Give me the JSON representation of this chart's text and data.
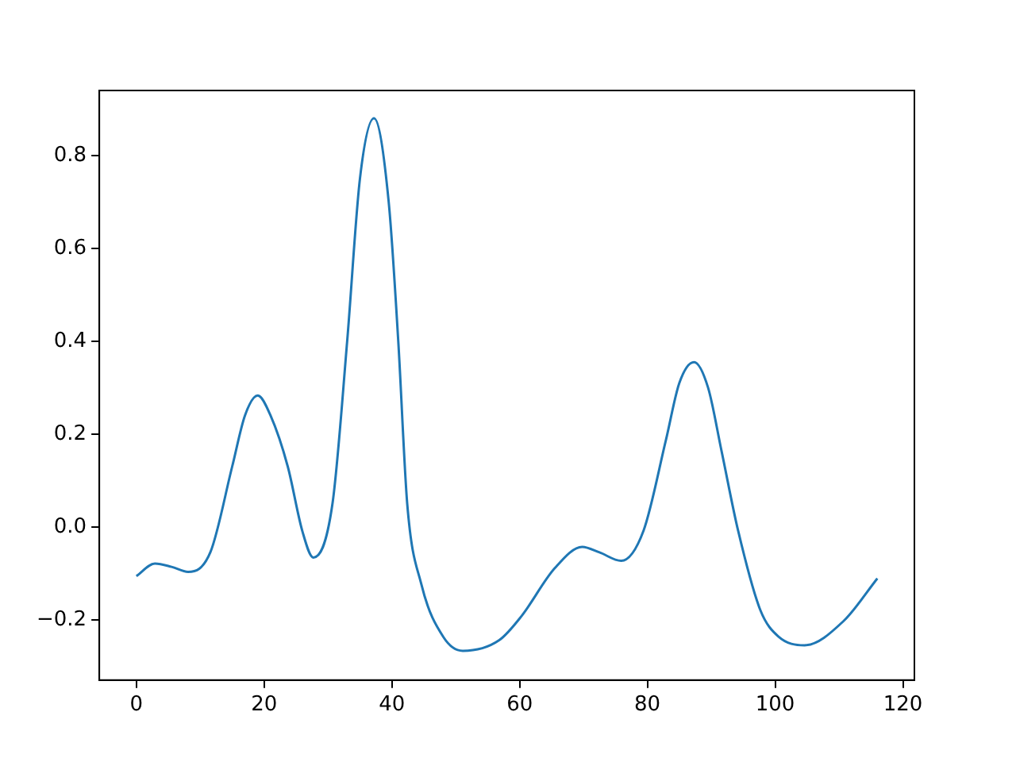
{
  "chart_data": {
    "type": "line",
    "x": [
      0,
      2.9,
      5.5,
      8.1,
      11.6,
      15,
      17,
      19,
      21,
      23.7,
      26,
      27.7,
      30.7,
      33,
      35,
      37.2,
      39.5,
      41,
      42.4,
      44.6,
      48.1,
      51.1,
      56.8,
      60.3,
      65.5,
      69.8,
      72.5,
      75.9,
      79.4,
      82.9,
      85,
      87.3,
      89.5,
      91.6,
      94.2,
      97.7,
      100.5,
      104.6,
      110.7,
      116
    ],
    "series": [
      {
        "color": "#1f77b4",
        "values": [
          -0.106,
          -0.079,
          -0.086,
          -0.097,
          -0.054,
          0.13,
          0.24,
          0.283,
          0.24,
          0.13,
          -0.01,
          -0.066,
          0.05,
          0.4,
          0.75,
          0.88,
          0.7,
          0.4,
          0.05,
          -0.123,
          -0.238,
          -0.267,
          -0.244,
          -0.192,
          -0.089,
          -0.043,
          -0.055,
          -0.073,
          -0.008,
          0.187,
          0.31,
          0.355,
          0.3,
          0.164,
          -0.008,
          -0.18,
          -0.236,
          -0.255,
          -0.203,
          -0.111
        ]
      }
    ],
    "xlim": [
      -5.8,
      121.8
    ],
    "xticks": [
      0,
      20,
      40,
      60,
      80,
      100,
      120
    ],
    "ylim": [
      -0.33,
      0.94
    ],
    "yticks": [
      {
        "value": -0.2,
        "label": "−0.2"
      },
      {
        "value": 0,
        "label": "0.0"
      },
      {
        "value": 0.2,
        "label": "0.2"
      },
      {
        "value": 0.4,
        "label": "0.4"
      },
      {
        "value": 0.6,
        "label": "0.6"
      },
      {
        "value": 0.8,
        "label": "0.8"
      }
    ],
    "grid": false,
    "legend": false,
    "marker": "none",
    "line_style": "solid"
  }
}
